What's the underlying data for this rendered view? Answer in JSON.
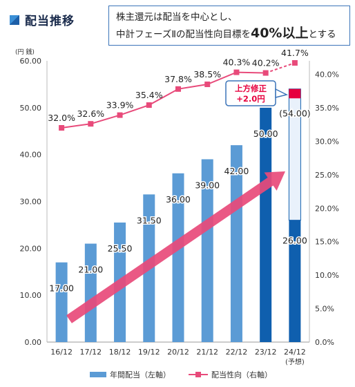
{
  "header": {
    "title": "配当推移"
  },
  "policy_box": {
    "line1": "株主還元は配当を中心とし、",
    "line2_prefix": "中計フェーズⅡの配当性向目標を",
    "line2_highlight": "40%以上",
    "line2_suffix": "とする"
  },
  "colors": {
    "bar": "#5b9bd5",
    "bar_dark": "#0f5fae",
    "line": "#e84a7a",
    "revision": "#e6003e",
    "arrow": "#e84a7a"
  },
  "chart_data": {
    "type": "bar",
    "categories": [
      "16/12",
      "17/12",
      "18/12",
      "19/12",
      "20/12",
      "21/12",
      "22/12",
      "23/12",
      "24/12"
    ],
    "category_note": "(予想)",
    "y_left_unit": "(円 銭)",
    "y_left_ticks": [
      "0.00",
      "10.00",
      "20.00",
      "30.00",
      "40.00",
      "50.00",
      "60.00"
    ],
    "y_left_range": [
      0,
      60
    ],
    "y_right_ticks": [
      "0.0%",
      "5.0%",
      "10.0%",
      "15.0%",
      "20.0%",
      "25.0%",
      "30.0%",
      "35.0%",
      "40.0%"
    ],
    "y_right_range": [
      0,
      42
    ],
    "series": [
      {
        "name": "年間配当（左軸）",
        "axis": "left",
        "values": [
          17.0,
          21.0,
          25.5,
          31.5,
          36.0,
          39.0,
          42.0,
          50.0,
          26.0
        ],
        "labels": [
          "17.00",
          "21.00",
          "25.50",
          "31.50",
          "36.00",
          "39.00",
          "42.00",
          "50.00",
          "26.00"
        ]
      },
      {
        "name": "配当性向（右軸）",
        "axis": "right",
        "values": [
          32.0,
          32.6,
          33.9,
          35.4,
          37.8,
          38.5,
          40.3,
          40.2,
          41.7
        ],
        "labels": [
          "32.0%",
          "32.6%",
          "33.9%",
          "35.4%",
          "37.8%",
          "38.5%",
          "40.3%",
          "40.2%",
          "41.7%"
        ]
      }
    ],
    "forecast": {
      "total_value": 54.0,
      "total_label": "(54.00)",
      "revision_value": 2.0
    },
    "callout": {
      "line1": "上方修正",
      "line2": "+2.0円"
    }
  }
}
